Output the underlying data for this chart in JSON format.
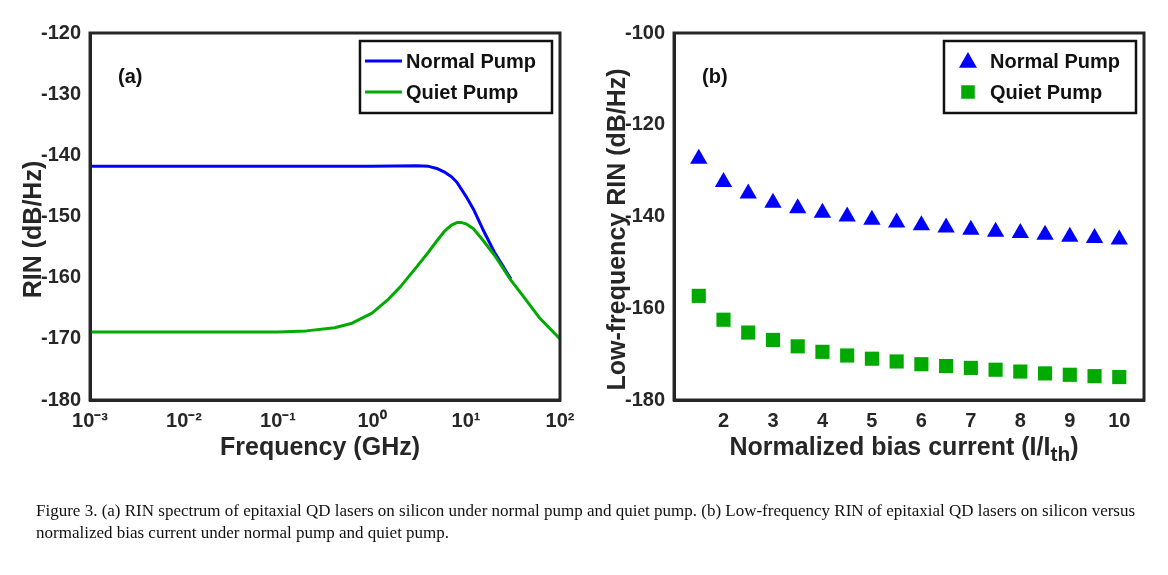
{
  "chart_data": [
    {
      "type": "line",
      "title": "(a)",
      "xlabel": "Frequency (GHz)",
      "ylabel": "RIN (dB/Hz)",
      "log": "x",
      "marker": "none",
      "legend": "top right",
      "grid": false,
      "xlim": [
        0.001,
        100
      ],
      "xticks": [
        {
          "value": 0.001,
          "label": "10⁻³"
        },
        {
          "value": 0.01,
          "label": "10⁻²"
        },
        {
          "value": 0.1,
          "label": "10⁻¹"
        },
        {
          "value": 1,
          "label": "10⁰"
        },
        {
          "value": 10,
          "label": "10¹"
        },
        {
          "value": 100,
          "label": "10²"
        }
      ],
      "ylim": [
        -180,
        -120
      ],
      "yticks": [
        -180,
        -170,
        -160,
        -150,
        -140,
        -130,
        -120
      ],
      "annotations": [
        "Figure 3. (a) RIN spectrum of epitaxial QD lasers on silicon under normal pump and quiet pump. (b) Low-frequency RIN of epitaxial QD lasers on silicon versus normalized bias current under normal pump and quiet pump."
      ],
      "series": [
        {
          "name": "Normal Pump",
          "color": "#0000ff",
          "x": [
            0.001,
            0.01,
            0.1,
            1,
            3,
            4,
            5,
            6,
            7,
            8,
            10,
            12,
            15,
            20,
            30
          ],
          "values": [
            -141.8,
            -141.8,
            -141.8,
            -141.8,
            -141.7,
            -141.8,
            -142.2,
            -142.8,
            -143.5,
            -144.4,
            -146.7,
            -148.8,
            -152,
            -155.8,
            -160.2
          ]
        },
        {
          "name": "Quiet Pump",
          "color": "#00aa00",
          "x": [
            0.001,
            0.01,
            0.1,
            0.2,
            0.4,
            0.6,
            1,
            1.5,
            2,
            3,
            4,
            5,
            6,
            7,
            8,
            9,
            10,
            12,
            15,
            20,
            30,
            40,
            60,
            100
          ],
          "values": [
            -168.9,
            -168.9,
            -168.9,
            -168.7,
            -168.2,
            -167.5,
            -165.8,
            -163.5,
            -161.5,
            -158.2,
            -155.8,
            -153.8,
            -152.3,
            -151.4,
            -151,
            -151,
            -151.2,
            -152,
            -153.8,
            -156.3,
            -160.4,
            -162.9,
            -166.5,
            -170
          ]
        }
      ]
    },
    {
      "type": "scatter",
      "title": "(b)",
      "xlabel": "Normalized bias current (I/I$_{th}$)",
      "ylabel": "Low-frequency RIN (dB/Hz)",
      "legend": "top right",
      "grid": false,
      "xlim": [
        1,
        10.5
      ],
      "xticks": [
        2,
        3,
        4,
        5,
        6,
        7,
        8,
        9,
        10
      ],
      "ylim": [
        -180,
        -100
      ],
      "yticks": [
        -180,
        -160,
        -140,
        -120,
        -100
      ],
      "x": [
        1.5,
        2,
        2.5,
        3,
        3.5,
        4,
        4.5,
        5,
        5.5,
        6,
        6.5,
        7,
        7.5,
        8,
        8.5,
        9,
        9.5,
        10
      ],
      "series": [
        {
          "name": "Normal Pump",
          "color": "#0000ff",
          "marker": "triangle",
          "values": [
            -127.4,
            -132.5,
            -135,
            -137,
            -138.2,
            -139.2,
            -140,
            -140.7,
            -141.3,
            -141.9,
            -142.4,
            -142.9,
            -143.3,
            -143.6,
            -144,
            -144.4,
            -144.7,
            -145
          ]
        },
        {
          "name": "Quiet Pump",
          "color": "#00aa00",
          "marker": "square",
          "values": [
            -157.3,
            -162.5,
            -165.3,
            -166.9,
            -168.3,
            -169.5,
            -170.3,
            -171,
            -171.6,
            -172.2,
            -172.6,
            -173,
            -173.4,
            -173.8,
            -174.2,
            -174.5,
            -174.8,
            -175
          ]
        }
      ]
    }
  ]
}
